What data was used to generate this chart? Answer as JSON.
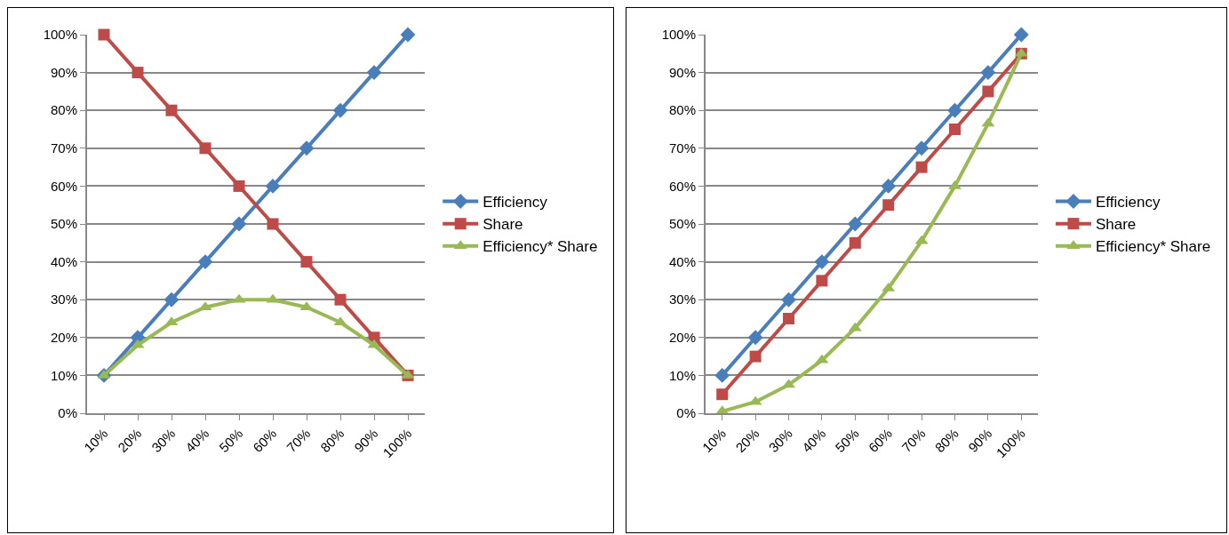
{
  "chart_data": [
    {
      "type": "line",
      "categories": [
        "10%",
        "20%",
        "30%",
        "40%",
        "50%",
        "60%",
        "70%",
        "80%",
        "90%",
        "100%"
      ],
      "series": [
        {
          "name": "Efficiency",
          "color": "#4a7ebb",
          "marker": "diamond",
          "values": [
            10,
            20,
            30,
            40,
            50,
            60,
            70,
            80,
            90,
            100
          ]
        },
        {
          "name": "Share",
          "color": "#be4b48",
          "marker": "square",
          "values": [
            100,
            90,
            80,
            70,
            60,
            50,
            40,
            30,
            20,
            10
          ]
        },
        {
          "name": "Efficiency* Share",
          "color": "#98b954",
          "marker": "triangle",
          "values": [
            10,
            18,
            24,
            28,
            30,
            30,
            28,
            24,
            18,
            10
          ]
        }
      ],
      "ylim": [
        0,
        100
      ],
      "yticks": [
        {
          "value": 0,
          "label": "0%"
        },
        {
          "value": 10,
          "label": "10%"
        },
        {
          "value": 20,
          "label": "20%"
        },
        {
          "value": 30,
          "label": "30%"
        },
        {
          "value": 40,
          "label": "40%"
        },
        {
          "value": 50,
          "label": "50%"
        },
        {
          "value": 60,
          "label": "60%"
        },
        {
          "value": 70,
          "label": "70%"
        },
        {
          "value": 80,
          "label": "80%"
        },
        {
          "value": 90,
          "label": "90%"
        },
        {
          "value": 100,
          "label": "100%"
        }
      ],
      "grid": "y",
      "legend": "right",
      "line_style": "solid"
    },
    {
      "type": "line",
      "categories": [
        "10%",
        "20%",
        "30%",
        "40%",
        "50%",
        "60%",
        "70%",
        "80%",
        "90%",
        "100%"
      ],
      "series": [
        {
          "name": "Efficiency",
          "color": "#4a7ebb",
          "marker": "diamond",
          "values": [
            10,
            20,
            30,
            40,
            50,
            60,
            70,
            80,
            90,
            100
          ]
        },
        {
          "name": "Share",
          "color": "#be4b48",
          "marker": "square",
          "values": [
            5,
            15,
            25,
            35,
            45,
            55,
            65,
            75,
            85,
            95
          ]
        },
        {
          "name": "Efficiency* Share",
          "color": "#98b954",
          "marker": "triangle",
          "values": [
            0.5,
            3,
            7.5,
            14,
            22.5,
            33,
            45.5,
            60,
            76.5,
            95
          ]
        }
      ],
      "ylim": [
        0,
        100
      ],
      "yticks": [
        {
          "value": 0,
          "label": "0%"
        },
        {
          "value": 10,
          "label": "10%"
        },
        {
          "value": 20,
          "label": "20%"
        },
        {
          "value": 30,
          "label": "30%"
        },
        {
          "value": 40,
          "label": "40%"
        },
        {
          "value": 50,
          "label": "50%"
        },
        {
          "value": 60,
          "label": "60%"
        },
        {
          "value": 70,
          "label": "70%"
        },
        {
          "value": 80,
          "label": "80%"
        },
        {
          "value": 90,
          "label": "90%"
        },
        {
          "value": 100,
          "label": "100%"
        }
      ],
      "grid": "y",
      "legend": "right",
      "line_style": "solid"
    }
  ]
}
